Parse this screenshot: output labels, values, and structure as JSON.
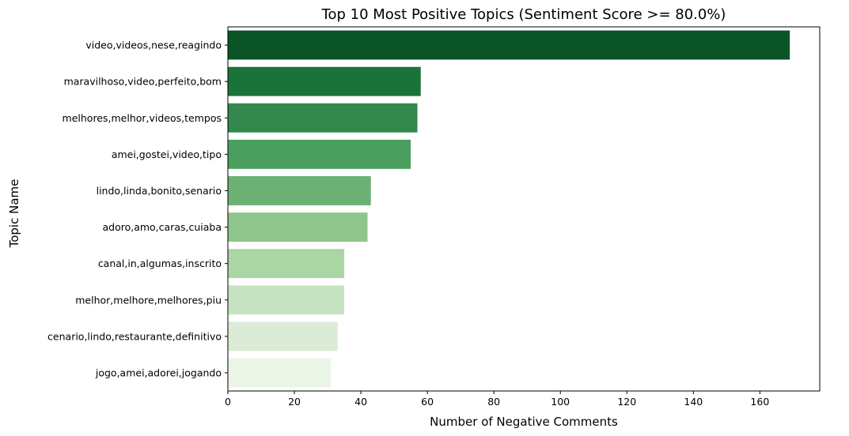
{
  "chart_data": {
    "type": "bar",
    "orientation": "horizontal",
    "title": "Top 10 Most Positive Topics (Sentiment Score >= 80.0%)",
    "xlabel": "Number of Negative Comments",
    "ylabel": "Topic Name",
    "xlim": [
      0,
      178
    ],
    "xticks": [
      0,
      20,
      40,
      60,
      80,
      100,
      120,
      140,
      160
    ],
    "grid": false,
    "legend": "none",
    "categories": [
      "video,videos,nese,reagindo",
      "maravilhoso,video,perfeito,bom",
      "melhores,melhor,videos,tempos",
      "amei,gostei,video,tipo",
      "lindo,linda,bonito,senario",
      "adoro,amo,caras,cuiaba",
      "canal,in,algumas,inscrito",
      "melhor,melhore,melhores,piu",
      "cenario,lindo,restaurante,definitivo",
      "jogo,amei,adorei,jogando"
    ],
    "values": [
      169,
      58,
      57,
      55,
      43,
      42,
      35,
      35,
      33,
      31
    ],
    "colors": [
      "#0a5427",
      "#1a7339",
      "#33884d",
      "#4a9e5e",
      "#6cb174",
      "#8fc58c",
      "#aad5a4",
      "#c6e3c1",
      "#daecd6",
      "#eaf5e7"
    ]
  }
}
